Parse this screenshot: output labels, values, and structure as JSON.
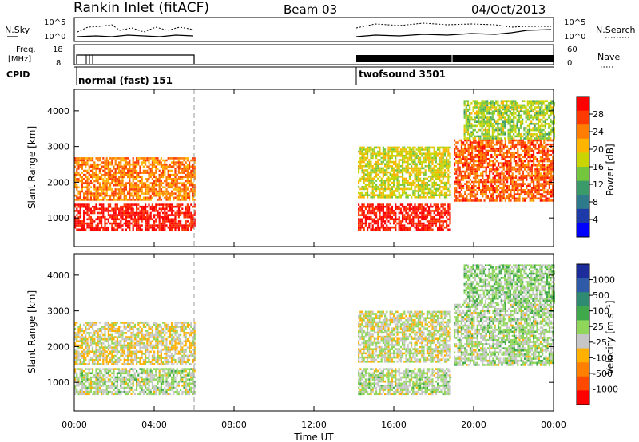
{
  "header": {
    "title": "Rankin Inlet (fitACF)",
    "beam": "Beam 03",
    "date": "04/Oct/2013"
  },
  "summary": {
    "nsky_label": "N.Sky",
    "nsearch_label": "N.Search",
    "left_ticks": [
      "10^5",
      "10^0"
    ],
    "right_ticks": [
      "10^5",
      "10^0"
    ],
    "freq_label_line1": "Freq.",
    "freq_label_line2": "[MHz]",
    "freq_ticks": [
      "18",
      "8"
    ],
    "nave_ticks": [
      "60",
      "0"
    ],
    "nave_label": "Nave",
    "cpid_label": "CPID",
    "cpid_modes": [
      {
        "name": "normal (fast) 151",
        "start_hour": 0.0,
        "end_hour": 6.0
      },
      {
        "name": "twofsound 3501",
        "start_hour": 14.2,
        "end_hour": 24.0
      }
    ]
  },
  "time_axis": {
    "label": "Time UT",
    "ticks": [
      "00:00",
      "04:00",
      "08:00",
      "12:00",
      "16:00",
      "20:00",
      "00:00"
    ]
  },
  "power_panel": {
    "ylabel": "Slant Range [km]",
    "yticks": [
      "4000",
      "3000",
      "2000",
      "1000"
    ],
    "colorbar_label": "Power [dB]",
    "colorbar_ticks": [
      "28",
      "24",
      "20",
      "16",
      "12",
      "8",
      "4"
    ],
    "colorbar_colors": [
      "#ff0000",
      "#ff3a00",
      "#ff7d00",
      "#ffb400",
      "#c9d400",
      "#74c63c",
      "#3a9a6a",
      "#2f7a8a",
      "#1e3aa8",
      "#0000ff"
    ]
  },
  "velocity_panel": {
    "ylabel": "Slant Range [km]",
    "yticks": [
      "4000",
      "3000",
      "2000",
      "1000"
    ],
    "colorbar_label": "Velocity  [m s⁻¹]",
    "colorbar_ticks": [
      "1000",
      "500",
      "100",
      "25",
      "-25",
      "-100",
      "-500",
      "-1000"
    ],
    "colorbar_colors": [
      "#1c2c9a",
      "#2f5aa8",
      "#2f8a72",
      "#3ea84a",
      "#8fd65a",
      "#c6c6c6",
      "#ffb000",
      "#ff8000",
      "#ff4800",
      "#ff0000"
    ]
  },
  "chart_data": [
    {
      "type": "heatmap",
      "title": "Power",
      "xlabel": "Time UT",
      "ylabel": "Slant Range [km]",
      "xlim": [
        0,
        24
      ],
      "ylim": [
        200,
        4600
      ],
      "colorbar": {
        "label": "Power [dB]",
        "min": 0,
        "max": 32
      },
      "regions": [
        {
          "t0": 0.0,
          "t1": 6.0,
          "r0": 700,
          "r1": 1400,
          "value": 30
        },
        {
          "t0": 0.0,
          "t1": 6.0,
          "r0": 1500,
          "r1": 2700,
          "value": 24
        },
        {
          "t0": 14.2,
          "t1": 18.8,
          "r0": 700,
          "r1": 1400,
          "value": 30
        },
        {
          "t0": 14.2,
          "t1": 18.8,
          "r0": 1600,
          "r1": 3000,
          "value": 18
        },
        {
          "t0": 19.0,
          "t1": 24.0,
          "r0": 1500,
          "r1": 3200,
          "value": 26
        },
        {
          "t0": 19.5,
          "t1": 24.0,
          "r0": 3200,
          "r1": 4300,
          "value": 16
        }
      ]
    },
    {
      "type": "heatmap",
      "title": "Velocity",
      "xlabel": "Time UT",
      "ylabel": "Slant Range [km]",
      "xlim": [
        0,
        24
      ],
      "ylim": [
        200,
        4600
      ],
      "colorbar": {
        "label": "Velocity [m s-1]",
        "min": -1000,
        "max": 1000
      },
      "regions": [
        {
          "t0": 0.0,
          "t1": 6.0,
          "r0": 700,
          "r1": 1400,
          "value": 0
        },
        {
          "t0": 0.0,
          "t1": 6.0,
          "r0": 1500,
          "r1": 2700,
          "value": -150
        },
        {
          "t0": 14.2,
          "t1": 18.8,
          "r0": 700,
          "r1": 1400,
          "value": 0
        },
        {
          "t0": 14.2,
          "t1": 18.8,
          "r0": 1600,
          "r1": 3000,
          "value": -80
        },
        {
          "t0": 19.0,
          "t1": 24.0,
          "r0": 1500,
          "r1": 3200,
          "value": 20
        },
        {
          "t0": 19.5,
          "t1": 24.0,
          "r0": 3200,
          "r1": 4300,
          "value": 80
        }
      ]
    }
  ]
}
